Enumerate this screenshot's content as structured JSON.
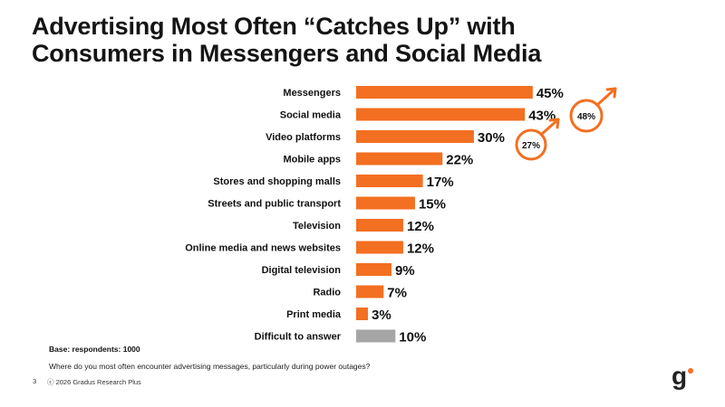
{
  "title_line1": "Advertising Most Often “Catches Up” with",
  "title_line2": "Consumers in Messengers and Social Media",
  "chart_data": {
    "type": "bar",
    "orientation": "horizontal",
    "categories": [
      "Messengers",
      "Social media",
      "Video platforms",
      "Mobile apps",
      "Stores and shopping malls",
      "Streets and public transport",
      "Television",
      "Online media and news websites",
      "Digital television",
      "Radio",
      "Print media",
      "Difficult to answer"
    ],
    "values": [
      45,
      43,
      30,
      22,
      17,
      15,
      12,
      12,
      9,
      7,
      3,
      10
    ],
    "value_labels": [
      "45%",
      "43%",
      "30%",
      "22%",
      "17%",
      "15%",
      "12%",
      "12%",
      "9%",
      "7%",
      "3%",
      "10%"
    ],
    "unit": "%",
    "colors": {
      "bar": "#F36F21",
      "bar_other": "#A6A6A6",
      "accent": "#F36F21"
    },
    "highlight_indices": [
      11
    ],
    "annotations": [
      {
        "label": "48%",
        "icon": "male-symbol"
      },
      {
        "label": "27%",
        "icon": "male-symbol"
      }
    ]
  },
  "footer": {
    "base": "Base: respondents: 1000",
    "question": "Where do you most often encounter advertising messages, particularly during power outages?",
    "page_number": "3",
    "copyright": "ⓒ 2026 Gradus Research Plus"
  },
  "logo": {
    "letter": "g",
    "dot_color": "#F36F21"
  }
}
